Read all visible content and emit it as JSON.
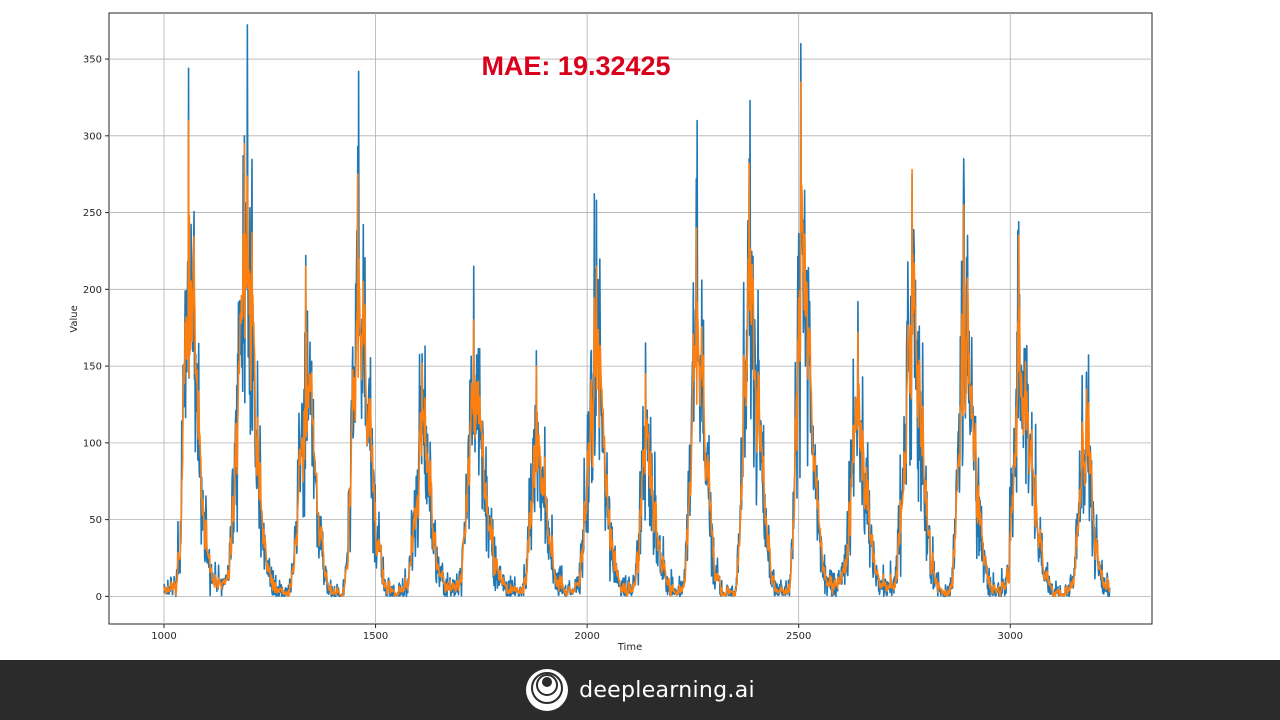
{
  "colors": {
    "series_actual": "#1f77b4",
    "series_forecast": "#ff7f0e",
    "annotation": "#d9001b",
    "footer_background": "#2b2b2b",
    "footer_text": "#ffffff",
    "grid": "#b0b0b0"
  },
  "annotation": {
    "text": "MAE: 19.32425"
  },
  "footer": {
    "brand": "deeplearning.ai",
    "logo_icon": "deeplearning-logo-icon"
  },
  "chart_data": {
    "type": "line",
    "title": "",
    "xlabel": "Time",
    "ylabel": "Value",
    "xlim": [
      870,
      3335
    ],
    "ylim": [
      -18,
      380
    ],
    "x_ticks": [
      1000,
      1500,
      2000,
      2500,
      3000
    ],
    "y_ticks": [
      0,
      50,
      100,
      150,
      200,
      250,
      300,
      350
    ],
    "grid": true,
    "legend": "none",
    "x_range": [
      1000,
      3235
    ],
    "peaks": [
      {
        "x": 1058,
        "actual": 344,
        "forecast": 310
      },
      {
        "x": 1190,
        "actual": 300,
        "forecast": 295
      },
      {
        "x": 1335,
        "actual": 222,
        "forecast": 215
      },
      {
        "x": 1458,
        "actual": 293,
        "forecast": 275
      },
      {
        "x": 1610,
        "actual": 158,
        "forecast": 152
      },
      {
        "x": 1732,
        "actual": 215,
        "forecast": 180
      },
      {
        "x": 1880,
        "actual": 160,
        "forecast": 150
      },
      {
        "x": 2022,
        "actual": 258,
        "forecast": 215
      },
      {
        "x": 2138,
        "actual": 165,
        "forecast": 145
      },
      {
        "x": 2258,
        "actual": 272,
        "forecast": 240
      },
      {
        "x": 2383,
        "actual": 285,
        "forecast": 282
      },
      {
        "x": 2505,
        "actual": 360,
        "forecast": 335
      },
      {
        "x": 2640,
        "actual": 192,
        "forecast": 172
      },
      {
        "x": 2768,
        "actual": 275,
        "forecast": 278
      },
      {
        "x": 2890,
        "actual": 285,
        "forecast": 255
      },
      {
        "x": 3020,
        "actual": 244,
        "forecast": 235
      },
      {
        "x": 3180,
        "actual": 146,
        "forecast": 135
      }
    ],
    "troughs": [
      {
        "x": 1020,
        "value": 3
      },
      {
        "x": 1135,
        "value": 8
      },
      {
        "x": 1285,
        "value": 2
      },
      {
        "x": 1415,
        "value": 1
      },
      {
        "x": 1560,
        "value": 2
      },
      {
        "x": 1685,
        "value": 5
      },
      {
        "x": 1835,
        "value": 2
      },
      {
        "x": 1960,
        "value": 2
      },
      {
        "x": 2100,
        "value": 4
      },
      {
        "x": 2215,
        "value": 3
      },
      {
        "x": 2340,
        "value": 2
      },
      {
        "x": 2470,
        "value": 2
      },
      {
        "x": 2590,
        "value": 8
      },
      {
        "x": 2715,
        "value": 6
      },
      {
        "x": 2850,
        "value": 3
      },
      {
        "x": 2980,
        "value": 3
      },
      {
        "x": 3125,
        "value": 2
      },
      {
        "x": 3235,
        "value": 5
      }
    ],
    "series": [
      {
        "key": "actual",
        "color": "#1f77b4"
      },
      {
        "key": "forecast",
        "color": "#ff7f0e"
      }
    ]
  }
}
